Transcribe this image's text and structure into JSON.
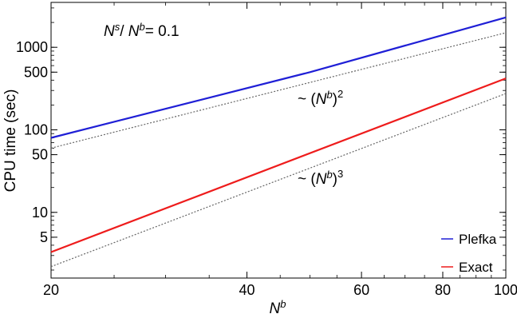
{
  "chart_data": {
    "type": "line",
    "x_scale": "log",
    "y_scale": "log",
    "xlim": [
      20,
      100
    ],
    "ylim": [
      1.6,
      3500
    ],
    "xlabel": "N^b",
    "ylabel": "CPU time (sec)",
    "x_ticks": [
      20,
      40,
      60,
      80,
      100
    ],
    "y_ticks": [
      5,
      10,
      50,
      100,
      500,
      1000
    ],
    "grid": false,
    "legend_position": "bottom-right",
    "annotations": [
      {
        "text": "N^s/ N^b= 0.1"
      },
      {
        "text": "~ (N^b)^2"
      },
      {
        "text": "~ (N^b)^3"
      }
    ],
    "series": [
      {
        "name": "Plefka",
        "color": "#1f1fd6",
        "style": "solid",
        "x": [
          20,
          50,
          100
        ],
        "y": [
          80,
          500,
          2300
        ]
      },
      {
        "name": "Exact",
        "color": "#ee1c1c",
        "style": "solid",
        "x": [
          20,
          100
        ],
        "y": [
          3.3,
          420
        ]
      },
      {
        "color": "#666666",
        "style": "dotted",
        "x": [
          20,
          100
        ],
        "y": [
          60,
          1500
        ]
      },
      {
        "color": "#666666",
        "style": "dotted",
        "x": [
          20,
          100
        ],
        "y": [
          2.2,
          275
        ]
      }
    ]
  }
}
